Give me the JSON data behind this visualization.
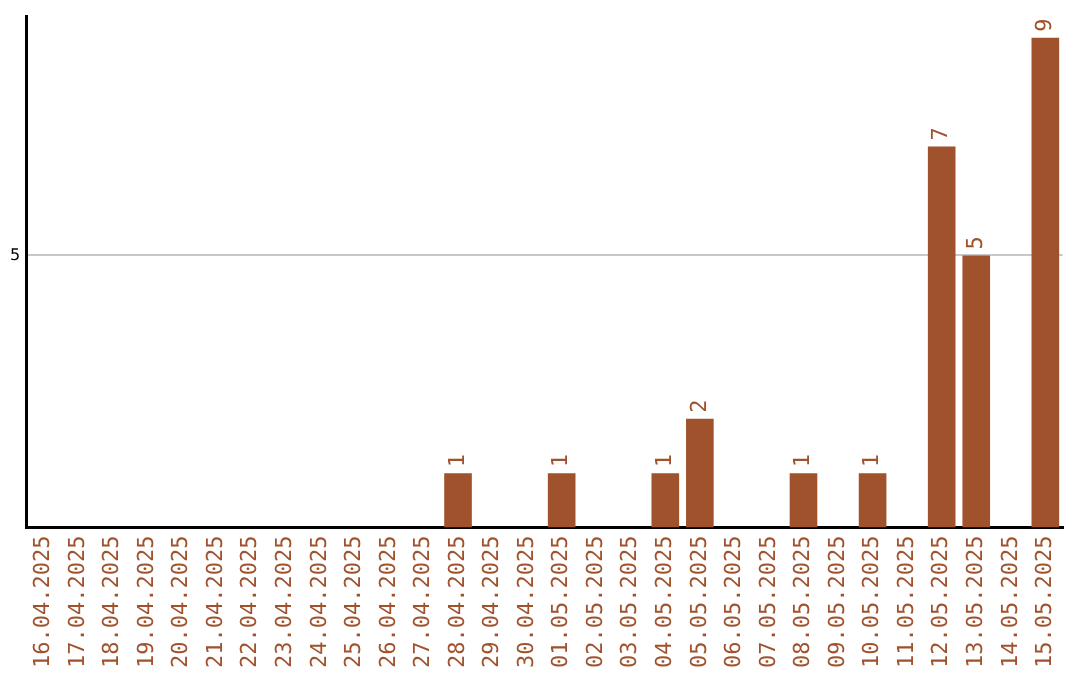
{
  "chart_data": {
    "type": "bar",
    "categories": [
      "16.04.2025",
      "17.04.2025",
      "18.04.2025",
      "19.04.2025",
      "20.04.2025",
      "21.04.2025",
      "22.04.2025",
      "23.04.2025",
      "24.04.2025",
      "25.04.2025",
      "26.04.2025",
      "27.04.2025",
      "28.04.2025",
      "29.04.2025",
      "30.04.2025",
      "01.05.2025",
      "02.05.2025",
      "03.05.2025",
      "04.05.2025",
      "05.05.2025",
      "06.05.2025",
      "07.05.2025",
      "08.05.2025",
      "09.05.2025",
      "10.05.2025",
      "11.05.2025",
      "12.05.2025",
      "13.05.2025",
      "14.05.2025",
      "15.05.2025"
    ],
    "values": [
      null,
      null,
      null,
      null,
      null,
      null,
      null,
      null,
      null,
      null,
      null,
      null,
      1,
      null,
      null,
      1,
      null,
      null,
      1,
      2,
      null,
      null,
      1,
      null,
      1,
      null,
      7,
      5,
      null,
      9
    ],
    "data_labels": true,
    "color": "#a0522d",
    "ylim": [
      0,
      9.4
    ],
    "yticks": [
      5
    ],
    "grid": "y",
    "legend": false
  }
}
